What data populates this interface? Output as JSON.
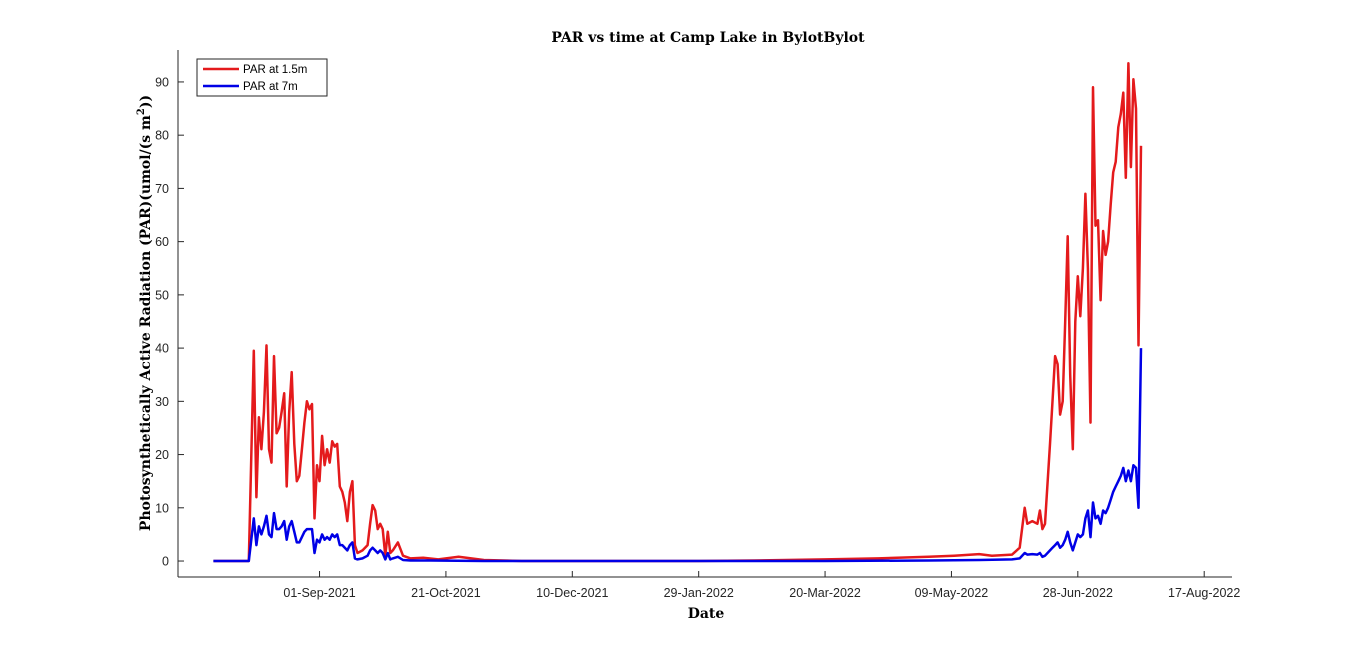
{
  "chart_data": {
    "type": "line",
    "title": "PAR vs time at Camp Lake in BylotBylot",
    "xlabel": "Date",
    "ylabel": "Photosynthetically Active Radiation (PAR)(umol/(s m",
    "ylabel_sup": "2",
    "ylabel_end": "))",
    "xlim": [
      "2021-07-07",
      "2022-08-28"
    ],
    "ylim": [
      -3,
      96
    ],
    "x_ticks": [
      "01-Sep-2021",
      "21-Oct-2021",
      "10-Dec-2021",
      "29-Jan-2022",
      "20-Mar-2022",
      "09-May-2022",
      "28-Jun-2022",
      "17-Aug-2022"
    ],
    "y_ticks": [
      0,
      10,
      20,
      30,
      40,
      50,
      60,
      70,
      80,
      90
    ],
    "legend_position": "top-left",
    "grid": false,
    "series": [
      {
        "name": "PAR at 1.5m",
        "color": "#e41a1c",
        "points": [
          [
            "2021-07-21",
            0
          ],
          [
            "2021-07-28",
            0
          ],
          [
            "2021-08-04",
            0
          ],
          [
            "2021-08-06",
            39.5
          ],
          [
            "2021-08-07",
            12
          ],
          [
            "2021-08-08",
            27
          ],
          [
            "2021-08-09",
            21
          ],
          [
            "2021-08-10",
            28
          ],
          [
            "2021-08-11",
            40.5
          ],
          [
            "2021-08-12",
            21
          ],
          [
            "2021-08-13",
            18.5
          ],
          [
            "2021-08-14",
            38.5
          ],
          [
            "2021-08-15",
            24
          ],
          [
            "2021-08-16",
            25
          ],
          [
            "2021-08-17",
            28
          ],
          [
            "2021-08-18",
            31.5
          ],
          [
            "2021-08-19",
            14
          ],
          [
            "2021-08-20",
            28
          ],
          [
            "2021-08-21",
            35.5
          ],
          [
            "2021-08-22",
            22
          ],
          [
            "2021-08-23",
            15
          ],
          [
            "2021-08-24",
            16
          ],
          [
            "2021-08-25",
            21
          ],
          [
            "2021-08-26",
            26
          ],
          [
            "2021-08-27",
            30
          ],
          [
            "2021-08-28",
            28.5
          ],
          [
            "2021-08-29",
            29.5
          ],
          [
            "2021-08-30",
            8
          ],
          [
            "2021-08-31",
            18
          ],
          [
            "2021-09-01",
            15
          ],
          [
            "2021-09-02",
            23.5
          ],
          [
            "2021-09-03",
            18
          ],
          [
            "2021-09-04",
            21
          ],
          [
            "2021-09-05",
            18.5
          ],
          [
            "2021-09-06",
            22.5
          ],
          [
            "2021-09-07",
            21.5
          ],
          [
            "2021-09-08",
            22
          ],
          [
            "2021-09-09",
            14
          ],
          [
            "2021-09-10",
            13
          ],
          [
            "2021-09-11",
            11
          ],
          [
            "2021-09-12",
            7.5
          ],
          [
            "2021-09-13",
            13
          ],
          [
            "2021-09-14",
            15
          ],
          [
            "2021-09-15",
            3
          ],
          [
            "2021-09-16",
            1.5
          ],
          [
            "2021-09-18",
            2
          ],
          [
            "2021-09-20",
            3
          ],
          [
            "2021-09-21",
            7
          ],
          [
            "2021-09-22",
            10.5
          ],
          [
            "2021-09-23",
            9.5
          ],
          [
            "2021-09-24",
            6
          ],
          [
            "2021-09-25",
            7
          ],
          [
            "2021-09-26",
            6
          ],
          [
            "2021-09-27",
            1
          ],
          [
            "2021-09-28",
            5.5
          ],
          [
            "2021-09-29",
            1.5
          ],
          [
            "2021-09-30",
            2
          ],
          [
            "2021-10-02",
            3.5
          ],
          [
            "2021-10-04",
            1
          ],
          [
            "2021-10-07",
            0.5
          ],
          [
            "2021-10-12",
            0.6
          ],
          [
            "2021-10-18",
            0.3
          ],
          [
            "2021-10-26",
            0.8
          ],
          [
            "2021-11-05",
            0.2
          ],
          [
            "2021-11-20",
            0
          ],
          [
            "2021-12-10",
            0
          ],
          [
            "2022-01-01",
            0
          ],
          [
            "2022-01-29",
            0
          ],
          [
            "2022-02-20",
            0.1
          ],
          [
            "2022-03-20",
            0.3
          ],
          [
            "2022-04-10",
            0.5
          ],
          [
            "2022-04-30",
            0.8
          ],
          [
            "2022-05-10",
            1
          ],
          [
            "2022-05-20",
            1.3
          ],
          [
            "2022-05-25",
            1
          ],
          [
            "2022-06-02",
            1.2
          ],
          [
            "2022-06-05",
            2.5
          ],
          [
            "2022-06-07",
            10
          ],
          [
            "2022-06-08",
            7
          ],
          [
            "2022-06-10",
            7.5
          ],
          [
            "2022-06-12",
            7
          ],
          [
            "2022-06-13",
            9.5
          ],
          [
            "2022-06-14",
            6
          ],
          [
            "2022-06-15",
            7
          ],
          [
            "2022-06-17",
            22
          ],
          [
            "2022-06-18",
            30
          ],
          [
            "2022-06-19",
            38.5
          ],
          [
            "2022-06-20",
            37
          ],
          [
            "2022-06-21",
            27.5
          ],
          [
            "2022-06-22",
            30
          ],
          [
            "2022-06-23",
            45
          ],
          [
            "2022-06-24",
            61
          ],
          [
            "2022-06-25",
            35
          ],
          [
            "2022-06-26",
            21
          ],
          [
            "2022-06-27",
            45
          ],
          [
            "2022-06-28",
            53.5
          ],
          [
            "2022-06-29",
            46
          ],
          [
            "2022-06-30",
            55
          ],
          [
            "2022-07-01",
            69
          ],
          [
            "2022-07-02",
            55
          ],
          [
            "2022-07-03",
            26
          ],
          [
            "2022-07-04",
            89
          ],
          [
            "2022-07-05",
            63
          ],
          [
            "2022-07-06",
            64
          ],
          [
            "2022-07-07",
            49
          ],
          [
            "2022-07-08",
            62
          ],
          [
            "2022-07-09",
            57.5
          ],
          [
            "2022-07-10",
            60
          ],
          [
            "2022-07-11",
            67
          ],
          [
            "2022-07-12",
            73
          ],
          [
            "2022-07-13",
            75
          ],
          [
            "2022-07-14",
            81.5
          ],
          [
            "2022-07-15",
            84
          ],
          [
            "2022-07-16",
            88
          ],
          [
            "2022-07-17",
            72
          ],
          [
            "2022-07-18",
            93.5
          ],
          [
            "2022-07-19",
            74
          ],
          [
            "2022-07-20",
            90.5
          ],
          [
            "2022-07-21",
            85
          ],
          [
            "2022-07-22",
            40.5
          ],
          [
            "2022-07-23",
            78
          ]
        ]
      },
      {
        "name": "PAR at 7m",
        "color": "#0000e6",
        "points": [
          [
            "2021-07-21",
            0
          ],
          [
            "2021-07-28",
            0
          ],
          [
            "2021-08-04",
            0
          ],
          [
            "2021-08-06",
            8
          ],
          [
            "2021-08-07",
            3
          ],
          [
            "2021-08-08",
            6.5
          ],
          [
            "2021-08-09",
            5
          ],
          [
            "2021-08-10",
            6.5
          ],
          [
            "2021-08-11",
            8.5
          ],
          [
            "2021-08-12",
            5
          ],
          [
            "2021-08-13",
            4.5
          ],
          [
            "2021-08-14",
            9
          ],
          [
            "2021-08-15",
            6
          ],
          [
            "2021-08-16",
            6
          ],
          [
            "2021-08-17",
            6.5
          ],
          [
            "2021-08-18",
            7.5
          ],
          [
            "2021-08-19",
            4
          ],
          [
            "2021-08-20",
            6.5
          ],
          [
            "2021-08-21",
            7.5
          ],
          [
            "2021-08-22",
            5.5
          ],
          [
            "2021-08-23",
            3.5
          ],
          [
            "2021-08-24",
            3.5
          ],
          [
            "2021-08-25",
            4.5
          ],
          [
            "2021-08-26",
            5.5
          ],
          [
            "2021-08-27",
            6
          ],
          [
            "2021-08-28",
            6
          ],
          [
            "2021-08-29",
            6
          ],
          [
            "2021-08-30",
            1.5
          ],
          [
            "2021-08-31",
            4
          ],
          [
            "2021-09-01",
            3.5
          ],
          [
            "2021-09-02",
            5
          ],
          [
            "2021-09-03",
            4
          ],
          [
            "2021-09-04",
            4.5
          ],
          [
            "2021-09-05",
            4
          ],
          [
            "2021-09-06",
            5
          ],
          [
            "2021-09-07",
            4.5
          ],
          [
            "2021-09-08",
            5
          ],
          [
            "2021-09-09",
            3
          ],
          [
            "2021-09-10",
            3
          ],
          [
            "2021-09-11",
            2.5
          ],
          [
            "2021-09-12",
            2
          ],
          [
            "2021-09-13",
            3
          ],
          [
            "2021-09-14",
            3.5
          ],
          [
            "2021-09-15",
            0.5
          ],
          [
            "2021-09-16",
            0.3
          ],
          [
            "2021-09-18",
            0.5
          ],
          [
            "2021-09-20",
            1
          ],
          [
            "2021-09-21",
            2
          ],
          [
            "2021-09-22",
            2.5
          ],
          [
            "2021-09-23",
            2
          ],
          [
            "2021-09-24",
            1.5
          ],
          [
            "2021-09-25",
            2
          ],
          [
            "2021-09-26",
            1.5
          ],
          [
            "2021-09-27",
            0.3
          ],
          [
            "2021-09-28",
            1.5
          ],
          [
            "2021-09-29",
            0.3
          ],
          [
            "2021-09-30",
            0.5
          ],
          [
            "2021-10-02",
            0.8
          ],
          [
            "2021-10-04",
            0.2
          ],
          [
            "2021-10-07",
            0.1
          ],
          [
            "2021-10-15",
            0.1
          ],
          [
            "2021-11-05",
            0
          ],
          [
            "2021-12-10",
            0
          ],
          [
            "2022-01-29",
            0
          ],
          [
            "2022-03-20",
            0
          ],
          [
            "2022-04-30",
            0.1
          ],
          [
            "2022-05-20",
            0.2
          ],
          [
            "2022-06-02",
            0.3
          ],
          [
            "2022-06-05",
            0.5
          ],
          [
            "2022-06-07",
            1.5
          ],
          [
            "2022-06-08",
            1.2
          ],
          [
            "2022-06-10",
            1.3
          ],
          [
            "2022-06-12",
            1.2
          ],
          [
            "2022-06-13",
            1.5
          ],
          [
            "2022-06-14",
            0.8
          ],
          [
            "2022-06-15",
            1
          ],
          [
            "2022-06-17",
            2
          ],
          [
            "2022-06-18",
            2.5
          ],
          [
            "2022-06-19",
            3
          ],
          [
            "2022-06-20",
            3.5
          ],
          [
            "2022-06-21",
            2.5
          ],
          [
            "2022-06-22",
            3
          ],
          [
            "2022-06-23",
            4
          ],
          [
            "2022-06-24",
            5.5
          ],
          [
            "2022-06-25",
            3.5
          ],
          [
            "2022-06-26",
            2
          ],
          [
            "2022-06-27",
            3.5
          ],
          [
            "2022-06-28",
            5
          ],
          [
            "2022-06-29",
            4.5
          ],
          [
            "2022-06-30",
            5
          ],
          [
            "2022-07-01",
            8
          ],
          [
            "2022-07-02",
            9.5
          ],
          [
            "2022-07-03",
            4.5
          ],
          [
            "2022-07-04",
            11
          ],
          [
            "2022-07-05",
            8
          ],
          [
            "2022-07-06",
            8.5
          ],
          [
            "2022-07-07",
            7
          ],
          [
            "2022-07-08",
            9.5
          ],
          [
            "2022-07-09",
            9
          ],
          [
            "2022-07-10",
            10
          ],
          [
            "2022-07-11",
            11.5
          ],
          [
            "2022-07-12",
            13
          ],
          [
            "2022-07-13",
            14
          ],
          [
            "2022-07-14",
            15
          ],
          [
            "2022-07-15",
            16
          ],
          [
            "2022-07-16",
            17.5
          ],
          [
            "2022-07-17",
            15
          ],
          [
            "2022-07-18",
            17
          ],
          [
            "2022-07-19",
            15
          ],
          [
            "2022-07-20",
            18
          ],
          [
            "2022-07-21",
            17.5
          ],
          [
            "2022-07-22",
            10
          ],
          [
            "2022-07-23",
            40
          ]
        ]
      }
    ]
  }
}
